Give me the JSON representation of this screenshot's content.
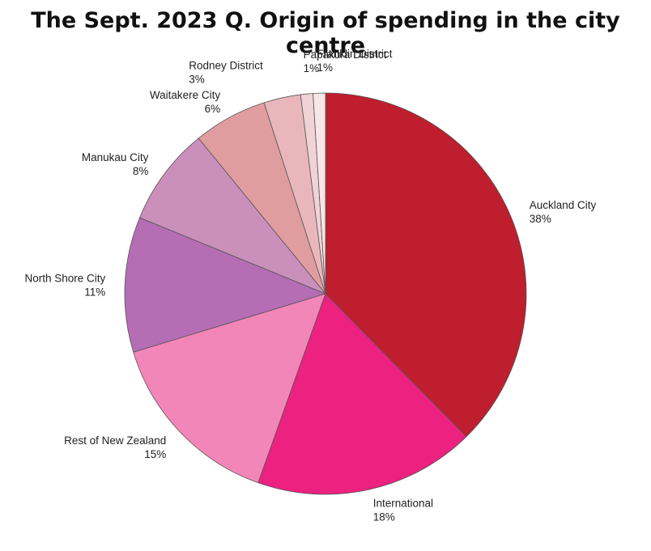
{
  "chart_data": {
    "type": "pie",
    "title": "The Sept. 2023 Q. Origin of spending in the city centre",
    "slices": [
      {
        "label": "Auckland City",
        "value": 38,
        "value_label": "38%",
        "color": "#be1e2d"
      },
      {
        "label": "International",
        "value": 18,
        "value_label": "18%",
        "color": "#ec2180"
      },
      {
        "label": "Rest of New Zealand",
        "value": 15,
        "value_label": "15%",
        "color": "#f386b8"
      },
      {
        "label": "North Shore City",
        "value": 11,
        "value_label": "11%",
        "color": "#b56db3"
      },
      {
        "label": "Manukau City",
        "value": 8,
        "value_label": "8%",
        "color": "#cb8fbb"
      },
      {
        "label": "Waitakere City",
        "value": 6,
        "value_label": "6%",
        "color": "#e09da0"
      },
      {
        "label": "Rodney District",
        "value": 3,
        "value_label": "3%",
        "color": "#e9b7bb"
      },
      {
        "label": "Papakura District",
        "value": 1,
        "value_label": "1%",
        "color": "#f1d2d6"
      },
      {
        "label": "Franklin District",
        "value": 1,
        "value_label": "1%",
        "color": "#f8e6e8"
      }
    ],
    "start": "12 o'clock",
    "direction": "clockwise",
    "legend": "none"
  }
}
